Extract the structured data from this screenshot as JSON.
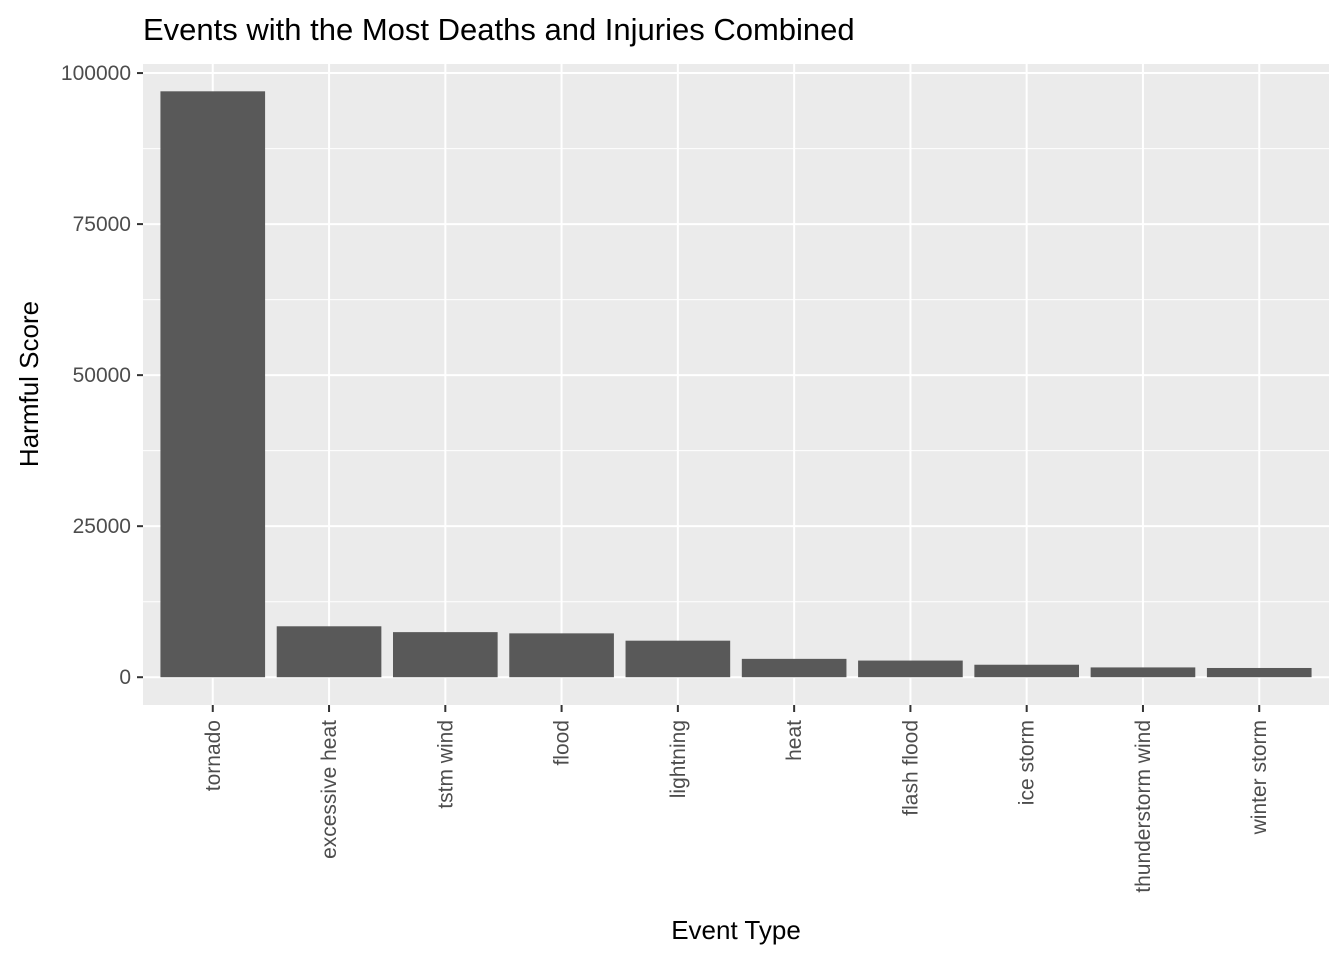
{
  "chart_data": {
    "type": "bar",
    "title": "Events with the Most Deaths and Injuries Combined",
    "xlabel": "Event Type",
    "ylabel": "Harmful Score",
    "categories": [
      "tornado",
      "excessive heat",
      "tstm wind",
      "flood",
      "lightning",
      "heat",
      "flash flood",
      "ice storm",
      "thunderstorm wind",
      "winter storm"
    ],
    "values": [
      96979,
      8428,
      7461,
      7259,
      6046,
      3037,
      2755,
      2064,
      1621,
      1527
    ],
    "ylim": [
      -4600,
      101500
    ],
    "yticks": [
      0,
      25000,
      50000,
      75000,
      100000
    ],
    "ytick_labels": [
      "0",
      "25000",
      "50000",
      "75000",
      "100000"
    ],
    "grid": true,
    "bar_color": "#595959",
    "panel_color": "#ebebeb",
    "grid_color": "#ffffff"
  }
}
